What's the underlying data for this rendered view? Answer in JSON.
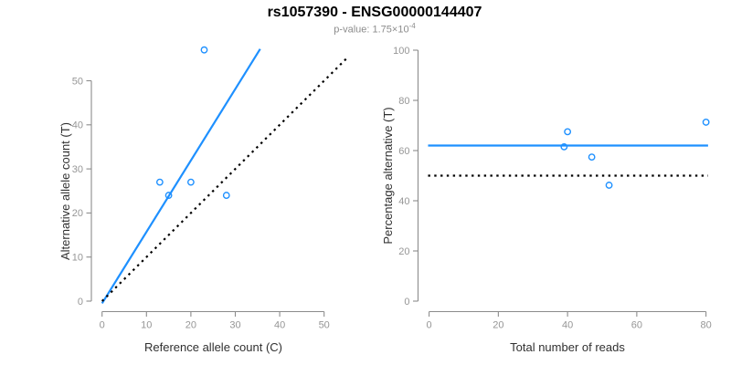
{
  "header": {
    "title": "rs1057390 - ENSG00000144407",
    "pvalue_text": "p-value: 1.75×10",
    "pvalue_exponent": "-4"
  },
  "colors": {
    "accent_blue": "#1E90FF",
    "identity_black": "#000000",
    "axis_line": "#8C8C8C",
    "tick_label": "#969696",
    "axis_label": "#303030",
    "subtitle_gray": "#8C8C8C",
    "background": "#FFFFFF"
  },
  "chart_data": [
    {
      "type": "scatter",
      "name": "allele-counts",
      "xlabel": "Reference allele count (C)",
      "ylabel": "Alternative allele count (T)",
      "xticks": [
        0,
        10,
        20,
        30,
        40,
        50
      ],
      "yticks": [
        0,
        10,
        20,
        30,
        40,
        50
      ],
      "xlim": [
        0,
        55
      ],
      "ylim": [
        0,
        57.5
      ],
      "points": [
        [
          13,
          27
        ],
        [
          15,
          24
        ],
        [
          20,
          27
        ],
        [
          23,
          57
        ],
        [
          28,
          24
        ]
      ],
      "lines": [
        {
          "name": "fit-line",
          "style": "solid",
          "color": "#1E90FF",
          "from": [
            0,
            -0.5
          ],
          "to": [
            35.6,
            57.2
          ]
        },
        {
          "name": "identity-line",
          "style": "dotted",
          "color": "#000000",
          "from": [
            0,
            0
          ],
          "to": [
            55.2,
            55.2
          ]
        }
      ],
      "legend": "none",
      "grid": false
    },
    {
      "type": "scatter",
      "name": "percentage-vs-reads",
      "xlabel": "Total number of reads",
      "ylabel": "Percentage alternative (T)",
      "xticks": [
        0,
        20,
        40,
        60,
        80
      ],
      "yticks": [
        0,
        20,
        40,
        60,
        80,
        100
      ],
      "xlim": [
        0,
        81
      ],
      "ylim": [
        0,
        100
      ],
      "points": [
        [
          39,
          61.5
        ],
        [
          40,
          67.5
        ],
        [
          47,
          57.4
        ],
        [
          52,
          46.2
        ],
        [
          80,
          71.3
        ]
      ],
      "lines": [
        {
          "name": "fit-line",
          "style": "solid",
          "color": "#1E90FF",
          "from": [
            -0.3,
            62
          ],
          "to": [
            80.6,
            62
          ]
        },
        {
          "name": "expected-line",
          "style": "dotted",
          "color": "#000000",
          "from": [
            -0.3,
            50
          ],
          "to": [
            80.6,
            50
          ]
        }
      ],
      "legend": "none",
      "grid": false
    }
  ]
}
